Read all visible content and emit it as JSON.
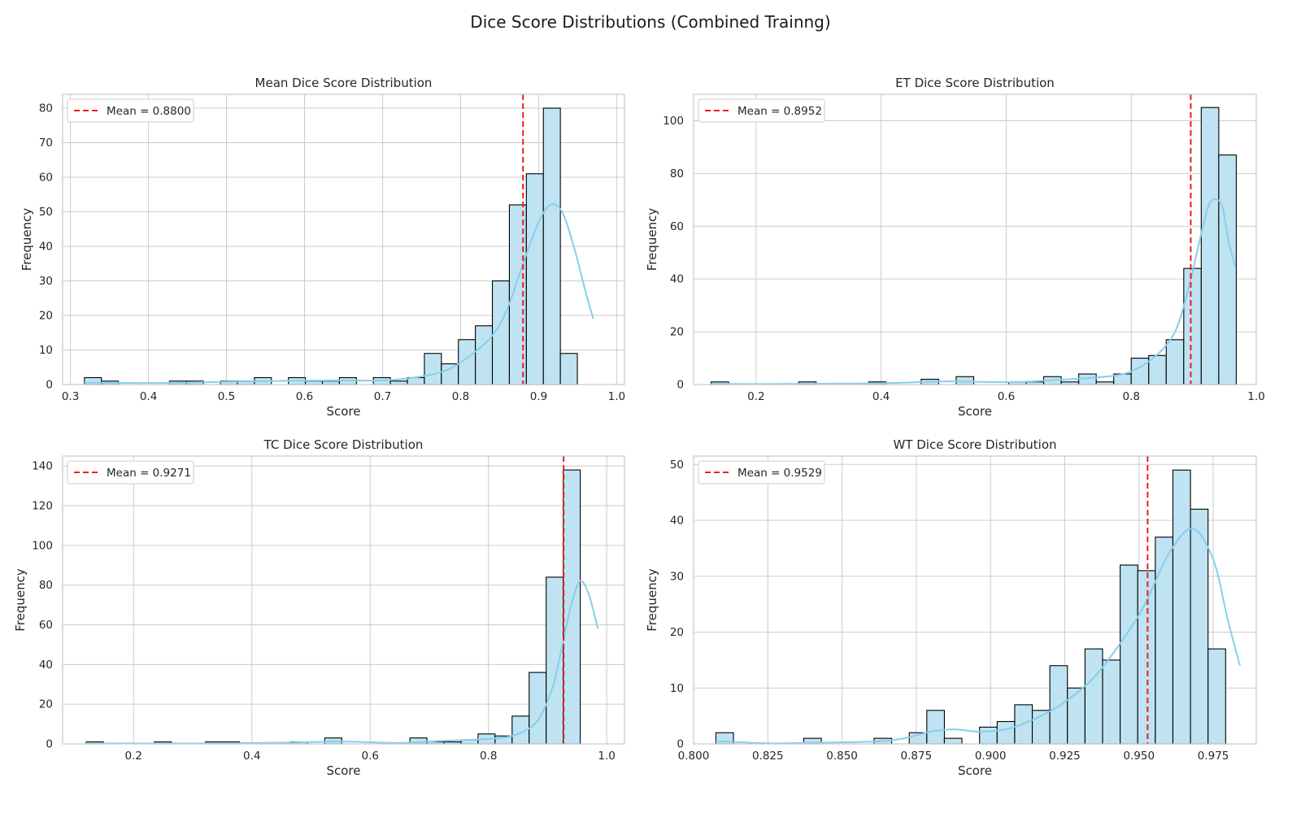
{
  "figure": {
    "title": "Dice Score Distributions (Combined Trainng)"
  },
  "colors": {
    "bar_fill": "#bfe3f2",
    "bar_edge": "#000000",
    "kde": "#87ceeb",
    "mean_line": "#ee1c1c",
    "grid": "#cccccc",
    "spine": "#c9c9c9"
  },
  "chart_data": [
    {
      "type": "histogram",
      "title": "Mean Dice Score Distribution",
      "xlabel": "Score",
      "ylabel": "Frequency",
      "xlim": [
        0.29,
        1.01
      ],
      "ylim": [
        0,
        84
      ],
      "xticks": [
        0.3,
        0.4,
        0.5,
        0.6,
        0.7,
        0.8,
        0.9,
        1.0
      ],
      "xtick_labels": [
        "0.3",
        "0.4",
        "0.5",
        "0.6",
        "0.7",
        "0.8",
        "0.9",
        "1.0"
      ],
      "yticks": [
        0,
        10,
        20,
        30,
        40,
        50,
        60,
        70,
        80
      ],
      "bin_start": 0.318,
      "bin_width": 0.02178,
      "counts": [
        2,
        1,
        0,
        0,
        0,
        1,
        1,
        0,
        1,
        1,
        2,
        0,
        2,
        1,
        1,
        2,
        0,
        2,
        1,
        2,
        9,
        6,
        13,
        17,
        30,
        52,
        61,
        80,
        9
      ],
      "kde": [
        [
          0.318,
          0.6
        ],
        [
          0.36,
          0.5
        ],
        [
          0.42,
          0.45
        ],
        [
          0.5,
          0.8
        ],
        [
          0.58,
          1.1
        ],
        [
          0.64,
          1.2
        ],
        [
          0.7,
          1.2
        ],
        [
          0.74,
          2
        ],
        [
          0.78,
          4
        ],
        [
          0.81,
          8
        ],
        [
          0.84,
          14
        ],
        [
          0.86,
          22
        ],
        [
          0.88,
          35
        ],
        [
          0.9,
          47
        ],
        [
          0.915,
          52
        ],
        [
          0.93,
          50
        ],
        [
          0.945,
          40
        ],
        [
          0.96,
          27
        ],
        [
          0.97,
          19
        ]
      ],
      "mean": 0.88,
      "legend": "Mean = 0.8800",
      "legend_loc": "upper left"
    },
    {
      "type": "histogram",
      "title": "ET Dice Score Distribution",
      "xlabel": "Score",
      "ylabel": "Frequency",
      "xlim": [
        0.1,
        1.0
      ],
      "ylim": [
        0,
        110
      ],
      "xticks": [
        0.2,
        0.4,
        0.6,
        0.8,
        1.0
      ],
      "xtick_labels": [
        "0.2",
        "0.4",
        "0.6",
        "0.8",
        "1.0"
      ],
      "yticks": [
        0,
        20,
        40,
        60,
        80,
        100
      ],
      "bin_start": 0.128,
      "bin_width": 0.028,
      "counts": [
        1,
        0,
        0,
        0,
        0,
        1,
        0,
        0,
        0,
        1,
        0,
        0,
        2,
        0,
        3,
        0,
        0,
        1,
        1,
        3,
        1,
        4,
        1,
        4,
        10,
        11,
        17,
        44,
        105,
        87
      ],
      "kde": [
        [
          0.128,
          0.3
        ],
        [
          0.2,
          0.2
        ],
        [
          0.3,
          0.3
        ],
        [
          0.4,
          0.5
        ],
        [
          0.5,
          1.2
        ],
        [
          0.56,
          1.0
        ],
        [
          0.62,
          1.0
        ],
        [
          0.7,
          2
        ],
        [
          0.76,
          3
        ],
        [
          0.8,
          5
        ],
        [
          0.84,
          11
        ],
        [
          0.87,
          20
        ],
        [
          0.89,
          35
        ],
        [
          0.905,
          50
        ],
        [
          0.92,
          65
        ],
        [
          0.93,
          70
        ],
        [
          0.945,
          68
        ],
        [
          0.955,
          55
        ],
        [
          0.966,
          45
        ]
      ],
      "mean": 0.8952,
      "legend": "Mean = 0.8952",
      "legend_loc": "upper left"
    },
    {
      "type": "histogram",
      "title": "TC Dice Score Distribution",
      "xlabel": "Score",
      "ylabel": "Frequency",
      "xlim": [
        0.08,
        1.03
      ],
      "ylim": [
        0,
        145
      ],
      "xticks": [
        0.2,
        0.4,
        0.6,
        0.8,
        1.0
      ],
      "xtick_labels": [
        "0.2",
        "0.4",
        "0.6",
        "0.8",
        "1.0"
      ],
      "yticks": [
        0,
        20,
        40,
        60,
        80,
        100,
        120,
        140
      ],
      "bin_start": 0.12,
      "bin_width": 0.0288,
      "counts": [
        1,
        0,
        0,
        0,
        1,
        0,
        0,
        1,
        1,
        0,
        0,
        0,
        1,
        0,
        3,
        0,
        0,
        0,
        0,
        3,
        1,
        1,
        2,
        5,
        4,
        14,
        36,
        84,
        138
      ],
      "kde": [
        [
          0.12,
          0.3
        ],
        [
          0.3,
          0.2
        ],
        [
          0.45,
          0.6
        ],
        [
          0.55,
          1.2
        ],
        [
          0.65,
          0.5
        ],
        [
          0.72,
          1.5
        ],
        [
          0.8,
          2.5
        ],
        [
          0.84,
          4
        ],
        [
          0.87,
          8
        ],
        [
          0.89,
          15
        ],
        [
          0.91,
          30
        ],
        [
          0.925,
          50
        ],
        [
          0.94,
          70
        ],
        [
          0.955,
          82
        ],
        [
          0.97,
          75
        ],
        [
          0.985,
          58
        ]
      ],
      "mean": 0.9271,
      "legend": "Mean = 0.9271",
      "legend_loc": "upper left"
    },
    {
      "type": "histogram",
      "title": "WT Dice Score Distribution",
      "xlabel": "Score",
      "ylabel": "Frequency",
      "xlim": [
        0.8,
        0.9895
      ],
      "ylim": [
        0,
        51.5
      ],
      "xticks": [
        0.8,
        0.825,
        0.85,
        0.875,
        0.9,
        0.925,
        0.95,
        0.975
      ],
      "xtick_labels": [
        "0.800",
        "0.825",
        "0.850",
        "0.875",
        "0.900",
        "0.925",
        "0.950",
        "0.975"
      ],
      "yticks": [
        0,
        10,
        20,
        30,
        40,
        50
      ],
      "bin_start": 0.8075,
      "bin_width": 0.00592,
      "counts": [
        2,
        0,
        0,
        0,
        0,
        1,
        0,
        0,
        0,
        1,
        0,
        2,
        6,
        1,
        0,
        3,
        4,
        7,
        6,
        14,
        10,
        17,
        15,
        32,
        31,
        37,
        49,
        42,
        17
      ],
      "kde": [
        [
          0.8075,
          0.5
        ],
        [
          0.825,
          0.1
        ],
        [
          0.84,
          0.2
        ],
        [
          0.86,
          0.4
        ],
        [
          0.87,
          0.9
        ],
        [
          0.88,
          2.2
        ],
        [
          0.888,
          2.6
        ],
        [
          0.896,
          2.2
        ],
        [
          0.905,
          2.6
        ],
        [
          0.915,
          4.5
        ],
        [
          0.925,
          7.5
        ],
        [
          0.935,
          12
        ],
        [
          0.945,
          19
        ],
        [
          0.952,
          25
        ],
        [
          0.96,
          34
        ],
        [
          0.968,
          38.5
        ],
        [
          0.975,
          33
        ],
        [
          0.98,
          22
        ],
        [
          0.984,
          14
        ]
      ],
      "mean": 0.9529,
      "legend": "Mean = 0.9529",
      "legend_loc": "upper left"
    }
  ]
}
